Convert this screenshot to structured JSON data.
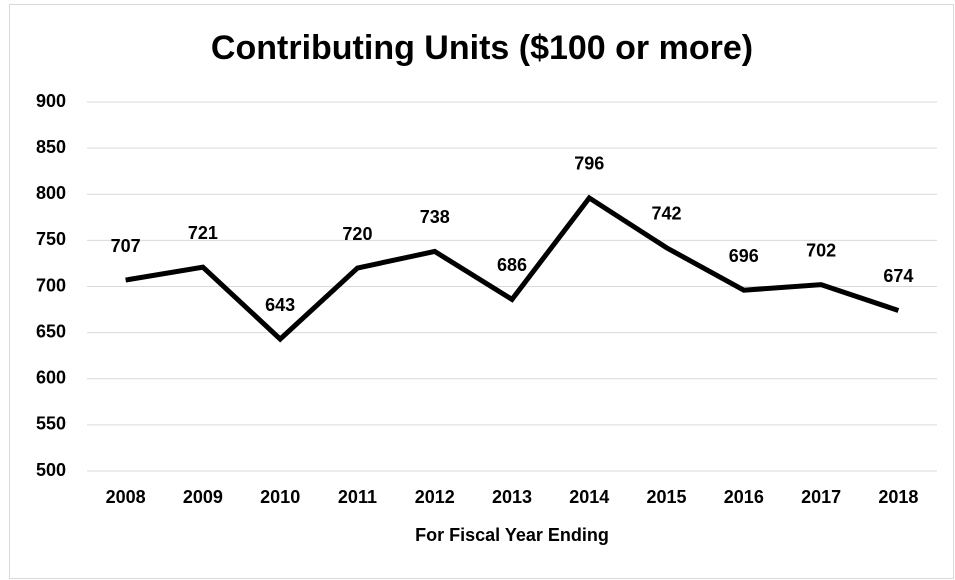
{
  "chart_data": {
    "type": "line",
    "title": "Contributing Units ($100 or more)",
    "x_label": "For Fiscal Year Ending",
    "categories": [
      "2008",
      "2009",
      "2010",
      "2011",
      "2012",
      "2013",
      "2014",
      "2015",
      "2016",
      "2017",
      "2018"
    ],
    "values": [
      707,
      721,
      643,
      720,
      738,
      686,
      796,
      742,
      696,
      702,
      674
    ],
    "color": "#000000",
    "ylim": [
      500,
      900
    ],
    "yticks": [
      500,
      550,
      600,
      650,
      700,
      750,
      800,
      850,
      900
    ],
    "grid": true
  }
}
